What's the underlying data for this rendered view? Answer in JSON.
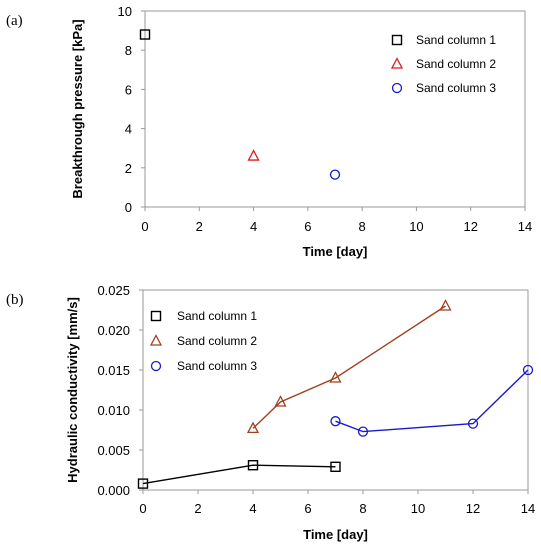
{
  "chart_data": [
    {
      "panel_label": "(a)",
      "type": "scatter",
      "xlabel": "Time [day]",
      "ylabel": "Breakthrough pressure [kPa]",
      "xlim": [
        0,
        14
      ],
      "ylim": [
        0,
        10
      ],
      "xticks": [
        "0",
        "2",
        "4",
        "6",
        "8",
        "10",
        "12",
        "14"
      ],
      "yticks": [
        "0",
        "2",
        "4",
        "6",
        "8",
        "10"
      ],
      "legend_position": "top-right",
      "grid": false,
      "series": [
        {
          "name": "Sand column 1",
          "marker": "square",
          "color": "#000000",
          "line": false,
          "points": [
            {
              "x": 0,
              "y": 8.8
            }
          ]
        },
        {
          "name": "Sand column 2",
          "marker": "triangle",
          "color": "#e0191b",
          "line": false,
          "points": [
            {
              "x": 4,
              "y": 2.6
            }
          ]
        },
        {
          "name": "Sand column 3",
          "marker": "circle",
          "color": "#1a1acd",
          "line": false,
          "points": [
            {
              "x": 7,
              "y": 1.65
            }
          ]
        }
      ]
    },
    {
      "panel_label": "(b)",
      "type": "line",
      "xlabel": "Time [day]",
      "ylabel": "Hydraulic conductivity [mm/s]",
      "xlim": [
        0,
        14
      ],
      "ylim": [
        0,
        0.025
      ],
      "xticks": [
        "0",
        "2",
        "4",
        "6",
        "8",
        "10",
        "12",
        "14"
      ],
      "yticks": [
        "0.000",
        "0.005",
        "0.010",
        "0.015",
        "0.020",
        "0.025"
      ],
      "legend_position": "top-left",
      "grid": false,
      "series": [
        {
          "name": "Sand column 1",
          "marker": "square",
          "color": "#000000",
          "line": true,
          "points": [
            {
              "x": 0,
              "y": 0.0008
            },
            {
              "x": 4,
              "y": 0.0031
            },
            {
              "x": 7,
              "y": 0.0029
            }
          ]
        },
        {
          "name": "Sand column 2",
          "marker": "triangle",
          "color": "#a0411e",
          "line": true,
          "points": [
            {
              "x": 4,
              "y": 0.0077
            },
            {
              "x": 5,
              "y": 0.011
            },
            {
              "x": 7,
              "y": 0.014
            },
            {
              "x": 11,
              "y": 0.023
            }
          ]
        },
        {
          "name": "Sand column 3",
          "marker": "circle",
          "color": "#1a1acd",
          "line": true,
          "points": [
            {
              "x": 7,
              "y": 0.0086
            },
            {
              "x": 8,
              "y": 0.0073
            },
            {
              "x": 12,
              "y": 0.0083
            },
            {
              "x": 14,
              "y": 0.015
            }
          ]
        }
      ]
    }
  ]
}
